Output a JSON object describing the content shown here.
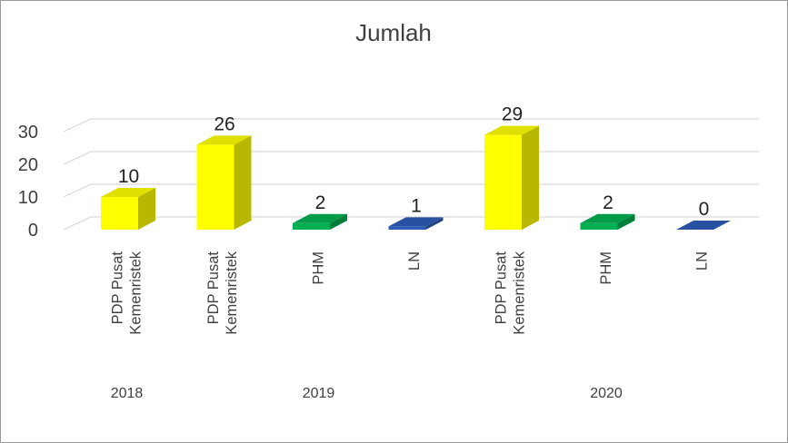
{
  "chart_data": {
    "type": "bar",
    "title": "Jumlah",
    "ylim": [
      0,
      30
    ],
    "yticks": [
      "0",
      "10",
      "20",
      "30"
    ],
    "grid": true,
    "style": "3d-column",
    "bars": [
      {
        "group": "2018",
        "label_lines": [
          "PDP Pusat",
          "Kemenristek"
        ],
        "value": 10,
        "value_label": "10",
        "color": "#FFFF00"
      },
      {
        "group": "2019",
        "label_lines": [
          "PDP Pusat",
          "Kemenristek"
        ],
        "value": 26,
        "value_label": "26",
        "color": "#FFFF00"
      },
      {
        "group": "2019",
        "label_lines": [
          "PHM"
        ],
        "value": 2,
        "value_label": "2",
        "color": "#00B050"
      },
      {
        "group": "2019",
        "label_lines": [
          "LN"
        ],
        "value": 1,
        "value_label": "1",
        "color": "#2E5DB7"
      },
      {
        "group": "2020",
        "label_lines": [
          "PDP Pusat",
          "Kemenristek"
        ],
        "value": 29,
        "value_label": "29",
        "color": "#FFFF00"
      },
      {
        "group": "2020",
        "label_lines": [
          "PHM"
        ],
        "value": 2,
        "value_label": "2",
        "color": "#00B050"
      },
      {
        "group": "2020",
        "label_lines": [
          "LN"
        ],
        "value": 0,
        "value_label": "0",
        "color": "#2E5DB7"
      }
    ],
    "groups": [
      {
        "label": "2018",
        "span": [
          0,
          0
        ]
      },
      {
        "label": "2019",
        "span": [
          1,
          3
        ]
      },
      {
        "label": "2020",
        "span": [
          4,
          6
        ]
      }
    ]
  }
}
